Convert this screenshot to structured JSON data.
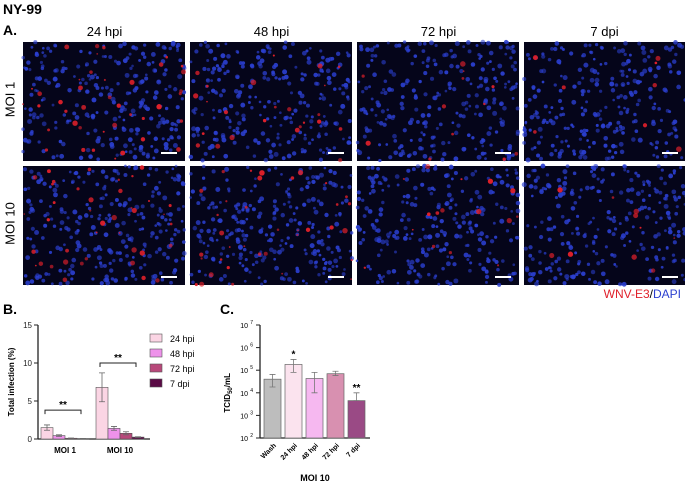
{
  "figure_title": "NY-99",
  "panel_a": {
    "label": "A.",
    "columns": [
      "24 hpi",
      "48 hpi",
      "72 hpi",
      "7 dpi"
    ],
    "rows": [
      "MOI 1",
      "MOI 10"
    ],
    "stain_legend": {
      "red": "WNV-E3",
      "sep": "/",
      "blue": "DAPI"
    },
    "colors": {
      "red": "#e0202a",
      "blue": "#2b3fd0",
      "background": "#05051a"
    },
    "red_signal_relative": [
      [
        1,
        0.6,
        0.3,
        0.2
      ],
      [
        1,
        0.9,
        0.4,
        0.25
      ]
    ]
  },
  "chart_data": [
    {
      "panel": "B.",
      "type": "bar",
      "title": "",
      "ylabel": "Total infection (%)",
      "xlabel": "",
      "ylim": [
        0,
        15
      ],
      "yticks": [
        0,
        5,
        10,
        15
      ],
      "legend": "right",
      "categories": [
        "MOI 1",
        "MOI 10"
      ],
      "series": [
        {
          "name": "24 hpi",
          "color": "#fbd5e4",
          "values": [
            1.5,
            6.8
          ],
          "err": [
            0.35,
            1.9
          ]
        },
        {
          "name": "48 hpi",
          "color": "#ee92ea",
          "values": [
            0.45,
            1.4
          ],
          "err": [
            0.1,
            0.25
          ]
        },
        {
          "name": "72 hpi",
          "color": "#b8487a",
          "values": [
            0.1,
            0.75
          ],
          "err": [
            0.03,
            0.2
          ]
        },
        {
          "name": "7 dpi",
          "color": "#5a0a45",
          "values": [
            0.05,
            0.25
          ],
          "err": [
            0.02,
            0.05
          ]
        }
      ],
      "annotations": [
        {
          "group": "MOI 1",
          "text": "**"
        },
        {
          "group": "MOI 10",
          "text": "**"
        }
      ]
    },
    {
      "panel": "C.",
      "type": "bar",
      "ylabel_main": "TCID",
      "ylabel_sub": "50",
      "ylabel_tail": "/mL",
      "xlabel": "MOI 10",
      "yscale": "log",
      "ylim": [
        100,
        10000000
      ],
      "ytick_exps": [
        "2",
        "3",
        "4",
        "5",
        "6",
        "7"
      ],
      "categories": [
        "Wash",
        "24 hpi",
        "48 hpi",
        "72 hpi",
        "7 dpi"
      ],
      "values": [
        40000,
        180000,
        43000,
        70000,
        4500
      ],
      "err_low": [
        18000,
        80000,
        10000,
        58000,
        4500
      ],
      "err_high": [
        65000,
        300000,
        80000,
        90000,
        10000
      ],
      "colors": [
        "#bdbdbd",
        "#fbe3ee",
        "#f6b8f0",
        "#d890b0",
        "#9a4a85"
      ],
      "annotations": [
        "",
        "*",
        "",
        "",
        "**"
      ]
    }
  ]
}
